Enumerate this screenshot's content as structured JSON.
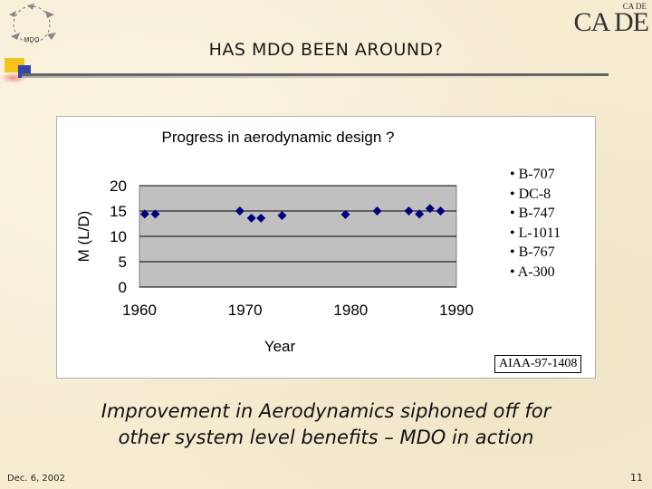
{
  "header": {
    "title": "HAS MDO BEEN AROUND?",
    "logo_left_text": "MDO",
    "logo_right_main": "CA DE",
    "logo_right_small": "CA DE"
  },
  "chart_data": {
    "type": "scatter",
    "title": "Progress in aerodynamic design ?",
    "xlabel": "Year",
    "ylabel": "M (L/D)",
    "xlim": [
      1960,
      1990
    ],
    "ylim": [
      0,
      20
    ],
    "x_ticks": [
      "1960",
      "1970",
      "1980",
      "1990"
    ],
    "y_ticks": [
      "0",
      "5",
      "10",
      "15",
      "20"
    ],
    "grid": true,
    "series": [
      {
        "x": [
          1960.5,
          1961.5,
          1969.5,
          1970.6,
          1971.5,
          1973.5,
          1979.5,
          1982.5,
          1985.5,
          1986.5,
          1987.5,
          1988.5
        ],
        "y": [
          14.4,
          14.4,
          15.0,
          13.6,
          13.6,
          14.1,
          14.3,
          15.0,
          15.0,
          14.4,
          15.5,
          15.0
        ]
      }
    ]
  },
  "legend_items": [
    "• B-707",
    "• DC-8",
    "• B-747",
    "• L-1011",
    "• B-767",
    "• A-300"
  ],
  "source_label": "AIAA-97-1408",
  "caption": {
    "line1": "Improvement in Aerodynamics siphoned off for",
    "line2": "other system level benefits – MDO in action"
  },
  "footer": {
    "date": "Dec. 6, 2002",
    "page": "11"
  },
  "colors": {
    "marker": "#00007f",
    "plot_bg": "#c0c0c0"
  }
}
